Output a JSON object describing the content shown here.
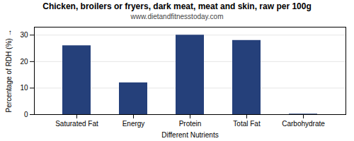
{
  "chart_data": {
    "type": "bar",
    "title": "Chicken, broilers or fryers, dark meat, meat and skin, raw per 100g",
    "subtitle": "www.dietandfitnesstoday.com",
    "xlabel": "Different Nutrients",
    "ylabel": "Percentage of RDH (%)",
    "categories": [
      "Saturated Fat",
      "Energy",
      "Protein",
      "Total Fat",
      "Carbohydrate"
    ],
    "values": [
      26,
      12,
      30,
      28,
      0.2
    ],
    "color": "#25407a",
    "ylim": [
      0,
      33
    ],
    "yticks": [
      0,
      10,
      20,
      30
    ],
    "grid": true
  }
}
